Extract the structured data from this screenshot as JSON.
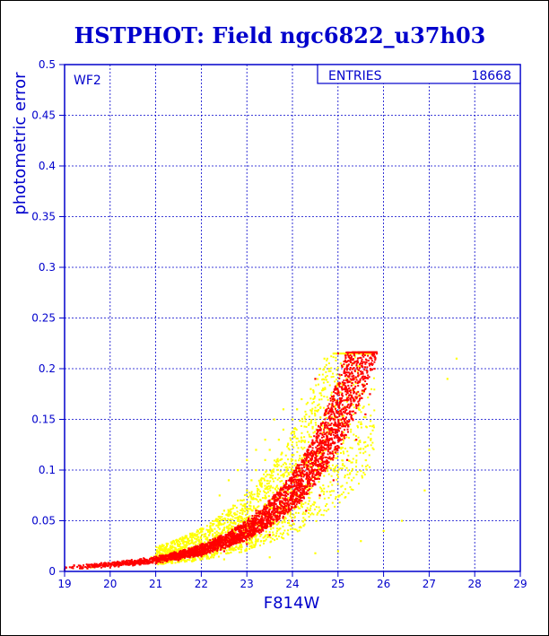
{
  "title": "HSTPHOT: Field ngc6822_u37h03",
  "panel_label": "WF2",
  "stats_box": {
    "label": "ENTRIES",
    "value": "18668"
  },
  "colors": {
    "axis": "#0000cc",
    "title": "#0000cc",
    "series_primary": "#ff0000",
    "series_secondary": "#ffff00"
  },
  "chart_data": {
    "type": "scatter",
    "title": "HSTPHOT: Field ngc6822_u37h03",
    "xlabel": "F814W",
    "ylabel": "photometric error",
    "xlim": [
      19,
      29
    ],
    "ylim": [
      0,
      0.5
    ],
    "grid": true,
    "xticks": [
      19,
      20,
      21,
      22,
      23,
      24,
      25,
      26,
      27,
      28,
      29
    ],
    "yticks": [
      0,
      0.05,
      0.1,
      0.15,
      0.2,
      0.25,
      0.3,
      0.35,
      0.4,
      0.45,
      0.5
    ],
    "entries": 18668,
    "series": [
      {
        "color": "#ffff00",
        "points": [
          [
            19.6,
            0.004
          ],
          [
            20.2,
            0.007
          ],
          [
            20.6,
            0.01
          ],
          [
            20.9,
            0.014
          ],
          [
            21.1,
            0.016
          ],
          [
            21.3,
            0.02
          ],
          [
            21.5,
            0.022
          ],
          [
            21.6,
            0.028
          ],
          [
            21.8,
            0.03
          ],
          [
            21.9,
            0.035
          ],
          [
            22.0,
            0.04
          ],
          [
            22.1,
            0.032
          ],
          [
            22.2,
            0.045
          ],
          [
            22.3,
            0.05
          ],
          [
            22.4,
            0.042
          ],
          [
            22.5,
            0.06
          ],
          [
            22.6,
            0.055
          ],
          [
            22.7,
            0.065
          ],
          [
            22.8,
            0.07
          ],
          [
            22.9,
            0.062
          ],
          [
            23.0,
            0.08
          ],
          [
            23.1,
            0.09
          ],
          [
            23.2,
            0.1
          ],
          [
            23.3,
            0.085
          ],
          [
            23.4,
            0.11
          ],
          [
            23.5,
            0.12
          ],
          [
            23.6,
            0.105
          ],
          [
            23.7,
            0.13
          ],
          [
            23.8,
            0.14
          ],
          [
            23.9,
            0.125
          ],
          [
            24.0,
            0.15
          ],
          [
            24.1,
            0.16
          ],
          [
            24.2,
            0.17
          ],
          [
            24.3,
            0.155
          ],
          [
            24.4,
            0.18
          ],
          [
            24.5,
            0.19
          ],
          [
            24.6,
            0.2
          ],
          [
            24.7,
            0.21
          ],
          [
            24.8,
            0.2
          ],
          [
            24.9,
            0.215
          ],
          [
            22.4,
            0.075
          ],
          [
            22.6,
            0.09
          ],
          [
            22.8,
            0.1
          ],
          [
            23.0,
            0.11
          ],
          [
            23.2,
            0.12
          ],
          [
            23.4,
            0.13
          ],
          [
            23.6,
            0.15
          ],
          [
            23.8,
            0.16
          ],
          [
            21.8,
            0.01
          ],
          [
            22.5,
            0.012
          ],
          [
            23.5,
            0.014
          ],
          [
            24.5,
            0.018
          ],
          [
            25.0,
            0.02
          ],
          [
            25.5,
            0.03
          ],
          [
            26.0,
            0.04
          ],
          [
            26.4,
            0.05
          ],
          [
            26.8,
            0.1
          ],
          [
            27.0,
            0.12
          ],
          [
            27.6,
            0.21
          ],
          [
            27.4,
            0.19
          ],
          [
            26.9,
            0.08
          ],
          [
            25.1,
            0.105
          ],
          [
            25.3,
            0.09
          ],
          [
            24.0,
            0.1
          ]
        ]
      },
      {
        "color": "#ff0000",
        "points": [
          [
            19.0,
            0.002
          ],
          [
            19.5,
            0.003
          ],
          [
            20.0,
            0.004
          ],
          [
            20.5,
            0.006
          ],
          [
            21.0,
            0.008
          ],
          [
            21.5,
            0.011
          ],
          [
            22.0,
            0.015
          ],
          [
            22.5,
            0.02
          ],
          [
            23.0,
            0.027
          ],
          [
            23.5,
            0.036
          ],
          [
            24.0,
            0.05
          ],
          [
            24.3,
            0.06
          ],
          [
            24.6,
            0.075
          ],
          [
            24.9,
            0.09
          ],
          [
            25.2,
            0.11
          ],
          [
            25.4,
            0.13
          ],
          [
            25.6,
            0.155
          ],
          [
            25.7,
            0.175
          ],
          [
            25.8,
            0.2
          ],
          [
            25.85,
            0.215
          ],
          [
            23.2,
            0.06
          ],
          [
            23.6,
            0.07
          ],
          [
            24.0,
            0.09
          ],
          [
            24.3,
            0.11
          ],
          [
            24.6,
            0.14
          ],
          [
            24.9,
            0.17
          ],
          [
            25.2,
            0.2
          ],
          [
            24.5,
            0.19
          ],
          [
            25.0,
            0.215
          ]
        ]
      }
    ]
  }
}
